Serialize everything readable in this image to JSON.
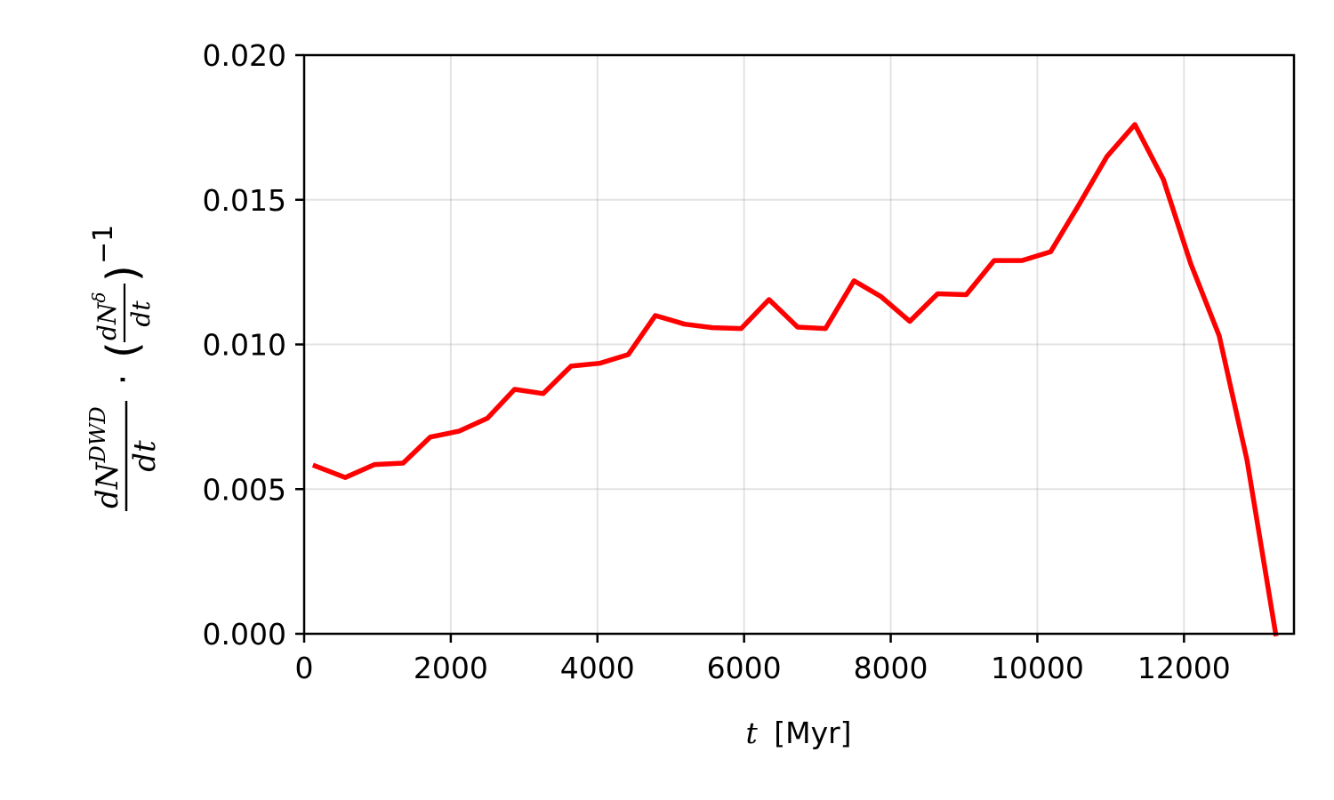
{
  "chart_data": {
    "type": "line",
    "title": "",
    "xlabel": {
      "var": "t",
      "unit": "[Myr]"
    },
    "ylabel": {
      "num1": "dN",
      "sup1": "DWD",
      "den1": "dt",
      "dot": "·",
      "num2": "dN",
      "sup2": "δ",
      "den2": "dt",
      "lparen": "(",
      "rparen": ")",
      "exponent": "−1"
    },
    "xlim": [
      0,
      13500
    ],
    "ylim": [
      0,
      0.02
    ],
    "xticks": [
      0,
      2000,
      4000,
      6000,
      8000,
      10000,
      12000
    ],
    "xtick_labels": [
      "0",
      "2000",
      "4000",
      "6000",
      "8000",
      "10000",
      "12000"
    ],
    "yticks": [
      0,
      0.005,
      0.01,
      0.015,
      0.02
    ],
    "ytick_labels": [
      "0.000",
      "0.005",
      "0.010",
      "0.015",
      "0.020"
    ],
    "grid": true,
    "line_color": "#ff0000",
    "x": [
      150,
      560,
      960,
      1350,
      1720,
      2110,
      2500,
      2870,
      3260,
      3640,
      4030,
      4420,
      4790,
      5190,
      5570,
      5960,
      6340,
      6730,
      7110,
      7500,
      7870,
      8260,
      8640,
      9030,
      9410,
      9790,
      10180,
      10560,
      10950,
      11330,
      11720,
      12090,
      12480,
      12860,
      13250
    ],
    "y": [
      0.0058,
      0.0054,
      0.00585,
      0.0059,
      0.0068,
      0.007,
      0.00745,
      0.00845,
      0.0083,
      0.00925,
      0.00935,
      0.00965,
      0.011,
      0.0107,
      0.01058,
      0.01055,
      0.01155,
      0.0106,
      0.01055,
      0.0122,
      0.01165,
      0.0108,
      0.01175,
      0.01172,
      0.0129,
      0.0129,
      0.0132,
      0.0148,
      0.0165,
      0.0176,
      0.0157,
      0.0128,
      0.0103,
      0.006,
      0.0
    ]
  }
}
